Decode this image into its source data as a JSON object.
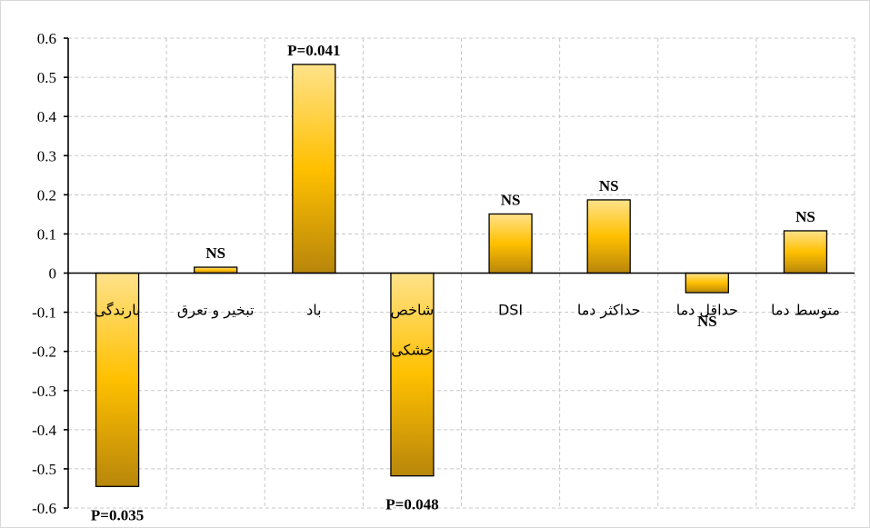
{
  "chart_data": {
    "type": "bar",
    "categories": [
      "بارندگی",
      "تبخیر و تعرق",
      "باد",
      "شاخص خشکی",
      "DSI",
      "حداکثر دما",
      "حداقل دما",
      "متوسط دما"
    ],
    "category_lines": [
      [
        "بارندگی"
      ],
      [
        "تبخیر و تعرق"
      ],
      [
        "باد"
      ],
      [
        "شاخص",
        "خشکی"
      ],
      [
        "DSI"
      ],
      [
        "حداکثر دما"
      ],
      [
        "حداقل دما"
      ],
      [
        "متوسط دما"
      ]
    ],
    "values": [
      -0.545,
      0.015,
      0.533,
      -0.518,
      0.151,
      0.187,
      -0.05,
      0.108
    ],
    "annotations": [
      "P=0.035",
      "NS",
      "P=0.041",
      "P=0.048",
      "NS",
      "NS",
      "NS",
      "NS"
    ],
    "ylim": [
      -0.6,
      0.6
    ],
    "yticks": [
      0.6,
      0.5,
      0.4,
      0.3,
      0.2,
      0.1,
      0,
      -0.1,
      -0.2,
      -0.3,
      -0.4,
      -0.5,
      -0.6
    ],
    "title": "",
    "xlabel": "",
    "ylabel": "",
    "grid": true,
    "colors": {
      "bar_top": "#ffe28a",
      "bar_mid": "#ffc000",
      "bar_bottom": "#b8860b",
      "grid": "#c8c8c8"
    }
  }
}
